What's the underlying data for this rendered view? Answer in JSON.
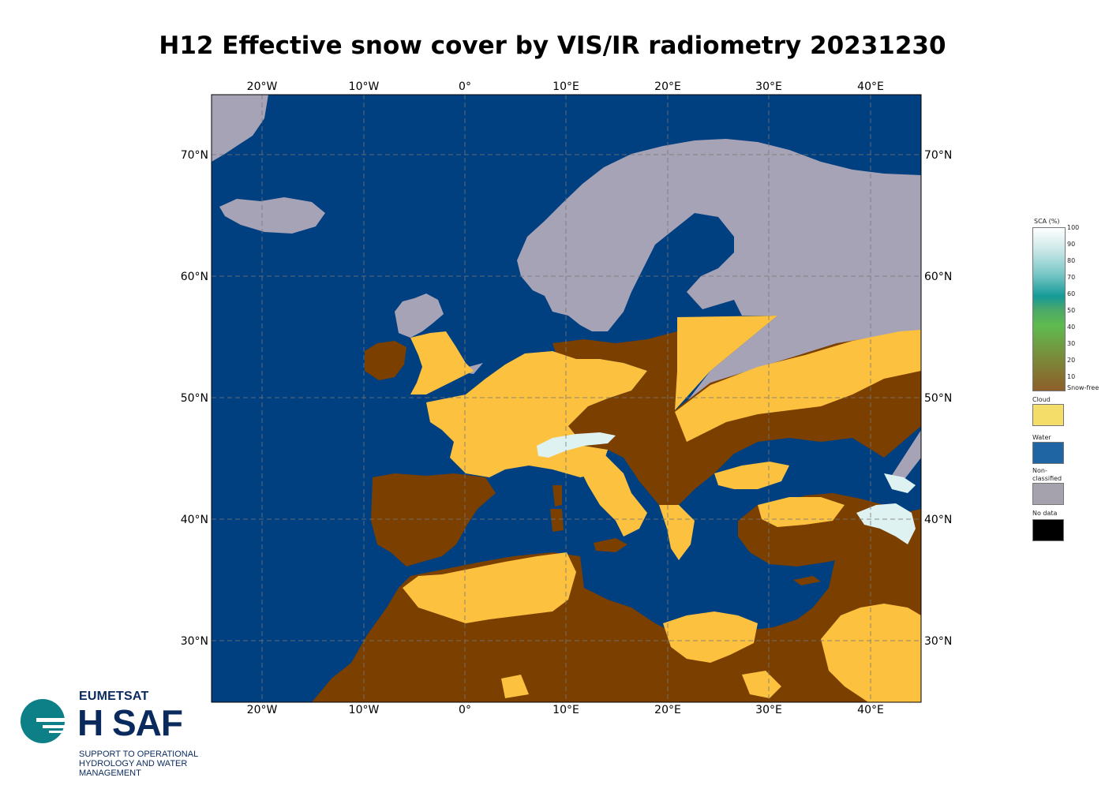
{
  "title": "H12 Effective snow cover by VIS/IR radiometry 20231230",
  "map": {
    "lon_labels": [
      "20°W",
      "10°W",
      "0°",
      "10°E",
      "20°E",
      "30°E",
      "40°E"
    ],
    "lat_labels": [
      "70°N",
      "60°N",
      "50°N",
      "40°N",
      "30°N"
    ],
    "colors": {
      "water": "#003f80",
      "non_classified": "#a7a3b6",
      "cloud": "#fcc13f",
      "snow_free": "#7b3f00",
      "snow": "#dff2f2",
      "border": "#555555"
    }
  },
  "legend": {
    "sca_title": "SCA (%)",
    "sca_ticks": [
      "100",
      "90",
      "80",
      "70",
      "60",
      "50",
      "40",
      "30",
      "20",
      "10"
    ],
    "snow_free_label": "Snow-free",
    "items": [
      {
        "label": "Cloud",
        "color": "#f5dd6a"
      },
      {
        "label": "Water",
        "color": "#1f64a3"
      },
      {
        "label": "Non-classified",
        "color": "#a6a2ad"
      },
      {
        "label": "No data",
        "color": "#000000"
      }
    ]
  },
  "logo": {
    "brand": "EUMETSAT",
    "name": "H SAF",
    "tagline": "SUPPORT TO OPERATIONAL HYDROLOGY AND WATER MANAGEMENT"
  }
}
